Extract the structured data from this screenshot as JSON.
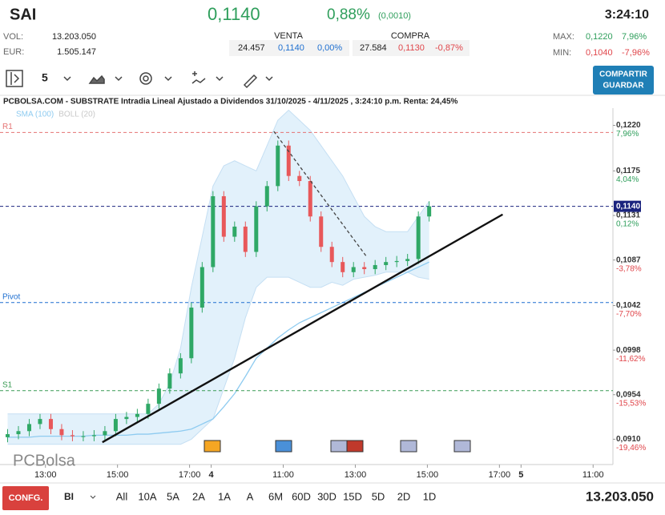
{
  "header": {
    "symbol": "SAI",
    "price": "0,1140",
    "change_pct": "0,88%",
    "change_abs": "(0,0010)",
    "time": "3:24:10",
    "vol_label": "VOL:",
    "vol": "13.203.050",
    "eur_label": "EUR:",
    "eur": "1.505.147",
    "venta": {
      "title": "VENTA",
      "qty": "24.457",
      "price": "0,1140",
      "pct": "0,00%"
    },
    "compra": {
      "title": "COMPRA",
      "qty": "27.584",
      "price": "0,1130",
      "pct": "-0,87%"
    },
    "max_label": "MAX:",
    "max": "0,1220",
    "max_pct": "7,96%",
    "min_label": "MIN:",
    "min": "0,1040",
    "min_pct": "-7,96%"
  },
  "toolbar": {
    "interval": "5",
    "share": "COMPARTIR",
    "save": "GUARDAR"
  },
  "footer": {
    "config": "CONFG.",
    "mode": "BI",
    "ranges": [
      "All",
      "10A",
      "5A",
      "2A",
      "1A",
      "A",
      "6M",
      "60D",
      "30D",
      "15D",
      "5D",
      "2D",
      "1D"
    ],
    "volume": "13.203.050"
  },
  "chart_data": {
    "type": "candlestick",
    "title": "PCBOLSA.COM - SUBSTRATE Intradia Lineal Ajustado a Dividendos 31/10/2025 - 4/11/2025 , 3:24:10 p.m. Renta: 24,45%",
    "watermark": "PCBolsa",
    "indicators": [
      {
        "name": "SMA (100)",
        "color": "#8ecbf0"
      },
      {
        "name": "BOLL (20)",
        "color": "#c8c8c8"
      }
    ],
    "x": [
      1,
      4,
      7,
      10,
      13,
      16,
      19,
      22,
      25,
      28,
      31,
      34,
      37,
      40,
      43,
      46,
      49,
      52,
      55,
      58,
      61,
      64,
      67,
      70,
      73,
      76,
      79,
      82,
      85,
      88,
      91,
      94,
      97,
      100,
      103,
      106,
      109,
      112,
      115,
      118
    ],
    "open": [
      0.0912,
      0.0915,
      0.0918,
      0.0925,
      0.093,
      0.092,
      0.0914,
      0.0913,
      0.0913,
      0.0914,
      0.0918,
      0.093,
      0.0932,
      0.0935,
      0.0945,
      0.096,
      0.0975,
      0.099,
      0.104,
      0.108,
      0.115,
      0.111,
      0.112,
      0.1095,
      0.114,
      0.116,
      0.12,
      0.117,
      0.1165,
      0.113,
      0.11,
      0.1085,
      0.1075,
      0.108,
      0.1078,
      0.1082,
      0.1085,
      0.1086,
      0.1088,
      0.113
    ],
    "high": [
      0.092,
      0.0923,
      0.093,
      0.0935,
      0.0935,
      0.0925,
      0.0919,
      0.0918,
      0.0919,
      0.0923,
      0.0935,
      0.0937,
      0.094,
      0.095,
      0.0965,
      0.098,
      0.0995,
      0.1045,
      0.1085,
      0.1155,
      0.1155,
      0.1125,
      0.1125,
      0.1145,
      0.1165,
      0.1205,
      0.1205,
      0.1175,
      0.117,
      0.1135,
      0.1105,
      0.109,
      0.1085,
      0.1085,
      0.1087,
      0.109,
      0.1091,
      0.1093,
      0.1135,
      0.1145
    ],
    "low": [
      0.0907,
      0.091,
      0.0913,
      0.092,
      0.0915,
      0.0909,
      0.0908,
      0.0908,
      0.0908,
      0.0909,
      0.0913,
      0.0925,
      0.0927,
      0.093,
      0.094,
      0.0955,
      0.097,
      0.0985,
      0.1035,
      0.1075,
      0.1105,
      0.1105,
      0.109,
      0.109,
      0.1135,
      0.1155,
      0.1165,
      0.116,
      0.1125,
      0.1095,
      0.108,
      0.107,
      0.107,
      0.1073,
      0.1073,
      0.1077,
      0.108,
      0.1081,
      0.1083,
      0.1125
    ],
    "close": [
      0.0915,
      0.0918,
      0.0925,
      0.093,
      0.092,
      0.0914,
      0.0913,
      0.0913,
      0.0914,
      0.0918,
      0.093,
      0.0932,
      0.0935,
      0.0945,
      0.096,
      0.0975,
      0.099,
      0.104,
      0.108,
      0.115,
      0.111,
      0.112,
      0.1095,
      0.114,
      0.116,
      0.12,
      0.117,
      0.1165,
      0.113,
      0.11,
      0.1085,
      0.1075,
      0.108,
      0.1078,
      0.1082,
      0.1085,
      0.1086,
      0.1088,
      0.113,
      0.114
    ],
    "sma": [
      0.0912,
      0.0912,
      0.0912,
      0.0913,
      0.0913,
      0.0913,
      0.0913,
      0.0913,
      0.0914,
      0.0914,
      0.0914,
      0.0914,
      0.0915,
      0.0915,
      0.0916,
      0.0917,
      0.0918,
      0.092,
      0.0925,
      0.093,
      0.0942,
      0.0955,
      0.0972,
      0.099,
      0.1,
      0.101,
      0.1018,
      0.1025,
      0.103,
      0.1035,
      0.104,
      0.1045,
      0.105,
      0.1055,
      0.106,
      0.1065,
      0.107,
      0.1075,
      0.108,
      0.1085
    ],
    "boll_upper": [
      0.0935,
      0.0935,
      0.0935,
      0.0935,
      0.0935,
      0.0935,
      0.0935,
      0.0935,
      0.0935,
      0.0935,
      0.0935,
      0.0935,
      0.0935,
      0.0935,
      0.0945,
      0.0965,
      0.1,
      0.106,
      0.111,
      0.116,
      0.118,
      0.1185,
      0.118,
      0.1175,
      0.12,
      0.1225,
      0.1235,
      0.1225,
      0.1215,
      0.12,
      0.1185,
      0.117,
      0.115,
      0.113,
      0.112,
      0.1115,
      0.1115,
      0.1115,
      0.113,
      0.1145
    ],
    "boll_lower": [
      0.0905,
      0.0905,
      0.0905,
      0.0905,
      0.0905,
      0.0905,
      0.0905,
      0.0905,
      0.0905,
      0.0905,
      0.0905,
      0.0905,
      0.0905,
      0.0905,
      0.0905,
      0.0905,
      0.0905,
      0.091,
      0.092,
      0.093,
      0.096,
      0.099,
      0.103,
      0.106,
      0.107,
      0.107,
      0.107,
      0.1065,
      0.106,
      0.106,
      0.1065,
      0.1062,
      0.1068,
      0.107,
      0.1072,
      0.1075,
      0.1075,
      0.1075,
      0.107,
      0.1068
    ],
    "up_color": "#2fa866",
    "down_color": "#e8585a",
    "levels": [
      {
        "name": "R1",
        "value": 0.1213,
        "color": "#e57373"
      },
      {
        "name": "Pivot",
        "value": 0.1045,
        "color": "#1e6fd0"
      },
      {
        "name": "S1",
        "value": 0.0958,
        "color": "#3a9c55"
      }
    ],
    "last_price": {
      "value": 0.114,
      "label": "0,1140",
      "color": "#1a237e"
    },
    "trendlines": [
      {
        "x": [
          27.3,
          138.4
        ],
        "y": [
          0.0907,
          0.1132
        ],
        "color": "#111111",
        "dashed": false
      },
      {
        "x": [
          74.9,
          100.7
        ],
        "y": [
          0.1214,
          0.109
        ],
        "color": "#444444",
        "dashed": true
      }
    ],
    "xlim": [
      0,
      169
    ],
    "ylim": [
      0.0885,
      0.1237
    ],
    "xticks": [
      {
        "value": 11.5,
        "label": "13:00"
      },
      {
        "value": 31.5,
        "label": "15:00"
      },
      {
        "value": 51.5,
        "label": "17:00"
      },
      {
        "value": 57.5,
        "label": "4"
      },
      {
        "value": 77.5,
        "label": "11:00"
      },
      {
        "value": 97.5,
        "label": "13:00"
      },
      {
        "value": 117.5,
        "label": "15:00"
      },
      {
        "value": 137.5,
        "label": "17:00"
      },
      {
        "value": 143.5,
        "label": "5"
      },
      {
        "value": 163.5,
        "label": "11:00"
      }
    ],
    "yticks": [
      {
        "value": 0.122,
        "label": "0,1220"
      },
      {
        "value": 0.1175,
        "label": "0,1175"
      },
      {
        "value": 0.1131,
        "label": "0,1131"
      },
      {
        "value": 0.1087,
        "label": "0,1087"
      },
      {
        "value": 0.1042,
        "label": "0,1042"
      },
      {
        "value": 0.0998,
        "label": "0,0998"
      },
      {
        "value": 0.0954,
        "label": "0,0954"
      },
      {
        "value": 0.091,
        "label": "0,0910"
      }
    ],
    "ytick_pct": [
      "7,96%",
      "4,04%",
      "0,12%",
      "-3,78%",
      "-7,70%",
      "-11,62%",
      "-15,53%",
      "-19,46%"
    ]
  }
}
